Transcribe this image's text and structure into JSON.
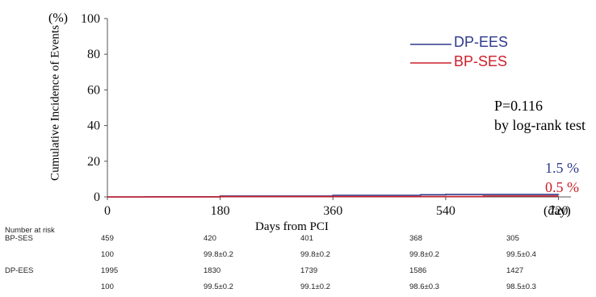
{
  "chart_data": {
    "type": "line",
    "ylabel": "Cumulative Incidence of Events",
    "yunit": "(%)",
    "xlabel": "Days from PCI",
    "xunit": "(day)",
    "xlim": [
      0,
      740
    ],
    "ylim": [
      0,
      100
    ],
    "xticks": [
      "0",
      "180",
      "360",
      "540",
      "720"
    ],
    "yticks": [
      "0",
      "20",
      "40",
      "60",
      "80",
      "100"
    ],
    "grid": false,
    "legend_position": "top-right",
    "series": [
      {
        "name": "DP-EES",
        "color": "#2e3a8c",
        "final_label": "1.5 %",
        "points": [
          [
            0,
            0
          ],
          [
            60,
            0.1
          ],
          [
            180,
            0.5
          ],
          [
            360,
            0.9
          ],
          [
            500,
            1.2
          ],
          [
            540,
            1.4
          ],
          [
            720,
            1.5
          ]
        ]
      },
      {
        "name": "BP-SES",
        "color": "#cc1f2a",
        "final_label": "0.5 %",
        "points": [
          [
            0,
            0
          ],
          [
            180,
            0.2
          ],
          [
            360,
            0.2
          ],
          [
            540,
            0.2
          ],
          [
            600,
            0.5
          ],
          [
            720,
            0.5
          ]
        ]
      }
    ],
    "annotations": {
      "pvalue": "P=0.116",
      "test": "by log-rank test"
    },
    "risk_table": {
      "title": "Number at risk",
      "rows": [
        {
          "label": "BP-SES",
          "values": [
            "459",
            "420",
            "401",
            "368",
            "305"
          ]
        },
        {
          "label": "",
          "values": [
            "100",
            "99.8±0.2",
            "99.8±0.2",
            "99.8±0.2",
            "99.5±0.4"
          ]
        },
        {
          "label": "DP-EES",
          "values": [
            "1995",
            "1830",
            "1739",
            "1586",
            "1427"
          ]
        },
        {
          "label": "",
          "values": [
            "100",
            "99.5±0.2",
            "99.1±0.2",
            "98.6±0.3",
            "98.5±0.3"
          ]
        }
      ]
    }
  }
}
